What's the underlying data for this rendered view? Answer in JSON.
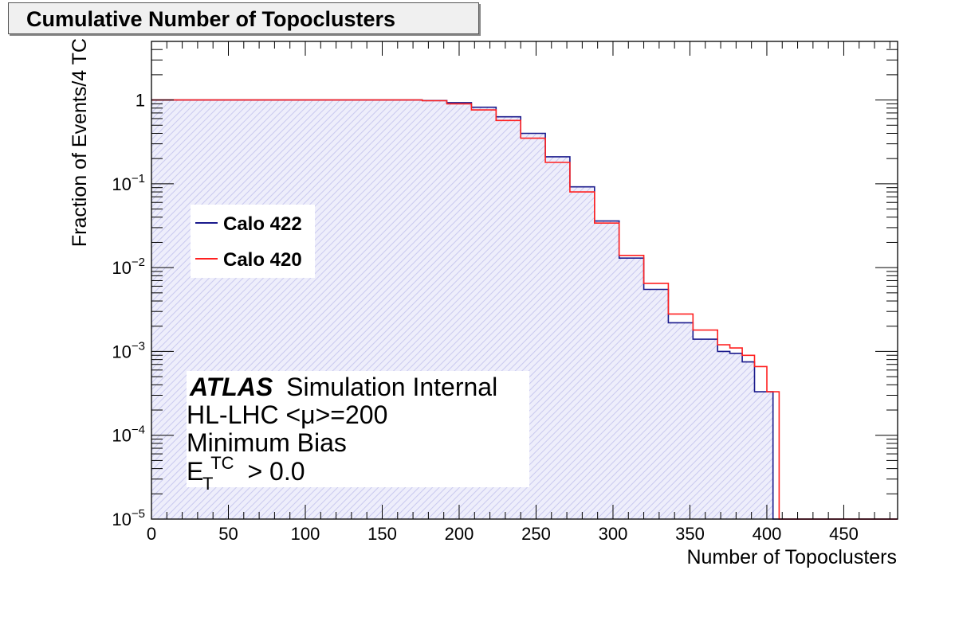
{
  "title": "Cumulative Number of Topoclusters",
  "annotations": {
    "atlas": "ATLAS",
    "atlas_suffix": "Simulation Internal",
    "line2": "HL-LHC <μ>=200",
    "line3": "Minimum Bias",
    "line4_base": "E",
    "line4_sub": "T",
    "line4_sup": "TC",
    "line4_rest": "> 0.0"
  },
  "chart_data": {
    "type": "line",
    "title": "Cumulative Number of Topoclusters",
    "xlabel": "Number of Topoclusters",
    "ylabel": "Fraction of Events/4 TC",
    "xlim": [
      0,
      485
    ],
    "ylim": [
      1e-05,
      5
    ],
    "ylog": true,
    "x_ticks": [
      "0",
      "50",
      "100",
      "150",
      "200",
      "250",
      "300",
      "350",
      "400",
      "450"
    ],
    "y_ticks": [
      {
        "base": "1",
        "exp": ""
      },
      {
        "base": "10",
        "exp": "−1"
      },
      {
        "base": "10",
        "exp": "−2"
      },
      {
        "base": "10",
        "exp": "−3"
      },
      {
        "base": "10",
        "exp": "−4"
      },
      {
        "base": "10",
        "exp": "−5"
      }
    ],
    "legend_position": "left",
    "colors": {
      "Calo 422": "#1a1a8c",
      "Calo 420": "#ff2020",
      "fill": "#c9c9ef"
    },
    "series": [
      {
        "name": "Calo 422",
        "x": [
          0,
          160,
          176,
          192,
          208,
          224,
          240,
          256,
          272,
          288,
          304,
          320,
          336,
          352,
          368,
          376,
          384,
          392,
          400,
          404,
          485
        ],
        "values": [
          1,
          1,
          0.985,
          0.93,
          0.82,
          0.63,
          0.4,
          0.21,
          0.092,
          0.036,
          0.013,
          0.0055,
          0.0022,
          0.0014,
          0.001,
          0.00095,
          0.00075,
          0.00033,
          0.00033,
          1e-05,
          1e-05
        ]
      },
      {
        "name": "Calo 420",
        "x": [
          0,
          160,
          176,
          192,
          208,
          224,
          240,
          256,
          272,
          288,
          304,
          320,
          336,
          352,
          368,
          376,
          384,
          392,
          400,
          408,
          485
        ],
        "values": [
          1,
          1,
          0.98,
          0.9,
          0.76,
          0.57,
          0.35,
          0.18,
          0.08,
          0.034,
          0.014,
          0.0065,
          0.0028,
          0.0018,
          0.0012,
          0.0011,
          0.0009,
          0.00066,
          0.00033,
          1e-05,
          1e-05
        ]
      }
    ]
  }
}
